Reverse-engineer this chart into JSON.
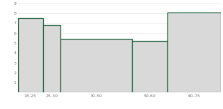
{
  "categories": [
    "18-25",
    "25-30",
    "30-50",
    "50-60",
    "60-75"
  ],
  "left_edges": [
    0,
    7,
    12,
    32,
    42
  ],
  "widths": [
    7,
    5,
    20,
    10,
    15
  ],
  "heights": [
    7.5,
    6.8,
    5.4,
    5.2,
    8.1
  ],
  "bar_facecolor": "#d9d9d9",
  "bar_edgecolor": "#1a5c38",
  "bar_linewidth": 0.9,
  "ylim": [
    0,
    9
  ],
  "xlim": [
    0,
    57
  ],
  "yticks": [
    0,
    1,
    2,
    3,
    4,
    5,
    6,
    7,
    8,
    9
  ],
  "xtick_positions": [
    3.5,
    9.5,
    22,
    37,
    49.5
  ],
  "xtick_labels": [
    "18-25",
    "25-30",
    "30-50",
    "50-60",
    "60-75"
  ],
  "grid_color": "#e0e0e0",
  "background_color": "#ffffff",
  "tick_fontsize": 4.5,
  "ytick_labels": [
    "",
    "1",
    "2",
    "3",
    "4",
    "5",
    "6",
    "7",
    "8",
    "9"
  ]
}
